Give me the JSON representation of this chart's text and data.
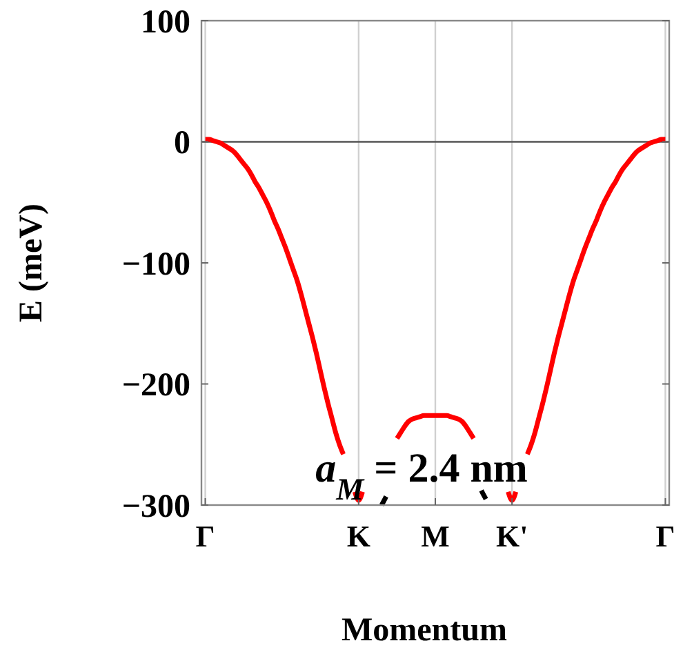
{
  "chart_data": {
    "type": "line",
    "xlabel": "Momentum",
    "ylabel": "E (meV)",
    "categories": [
      "Γ",
      null,
      null,
      null,
      null,
      null,
      null,
      null,
      null,
      null,
      null,
      null,
      null,
      null,
      null,
      null,
      null,
      null,
      null,
      null,
      null,
      null,
      null,
      null,
      null,
      null,
      null,
      null,
      null,
      null,
      null,
      null,
      null,
      null,
      null,
      null,
      null,
      null,
      null,
      null,
      "K",
      null,
      null,
      null,
      null,
      null,
      null,
      null,
      null,
      null,
      null,
      null,
      null,
      null,
      null,
      null,
      null,
      null,
      null,
      null,
      "M",
      null,
      null,
      null,
      null,
      null,
      null,
      null,
      null,
      null,
      null,
      null,
      null,
      null,
      null,
      null,
      null,
      null,
      null,
      null,
      "K'",
      null,
      null,
      null,
      null,
      null,
      null,
      null,
      null,
      null,
      null,
      null,
      null,
      null,
      null,
      null,
      null,
      null,
      null,
      null,
      null,
      null,
      null,
      null,
      null,
      null,
      null,
      null,
      null,
      null,
      null,
      null,
      null,
      null,
      null,
      null,
      null,
      null,
      null,
      null,
      "Γ"
    ],
    "ylim": [
      -300,
      100
    ],
    "yticks": [
      {
        "value": 100,
        "label": "100"
      },
      {
        "value": 0,
        "label": "0"
      },
      {
        "value": -100,
        "label": "−100"
      },
      {
        "value": -200,
        "label": "−200"
      },
      {
        "value": -300,
        "label": "−300"
      }
    ],
    "grid": "x",
    "ref_lines": [
      {
        "axis": "y",
        "value": 0,
        "color": "#555555"
      }
    ],
    "series": [
      {
        "color": "#ff0000",
        "values": [
          2,
          2,
          1,
          0,
          -1,
          -3,
          -5,
          -7,
          -10,
          -14,
          -18,
          -22,
          -27,
          -33,
          -38,
          -44,
          -50,
          -57,
          -65,
          -72,
          -80,
          -88,
          -97,
          -106,
          -115,
          -126,
          -138,
          -150,
          -162,
          -175,
          -189,
          -203,
          -216,
          -228,
          -240,
          -250,
          -258,
          null,
          null,
          -289,
          -296,
          -289,
          null,
          null,
          null,
          null,
          null,
          null,
          null,
          null,
          -245,
          -240,
          -235,
          -231,
          -229,
          -228,
          -227,
          -226,
          -226,
          -226,
          -226,
          -226,
          -226,
          -226,
          -227,
          -228,
          -229,
          -231,
          -235,
          -240,
          -245,
          null,
          null,
          null,
          null,
          null,
          null,
          null,
          null,
          -289,
          -296,
          -289,
          null,
          null,
          -258,
          -250,
          -240,
          -228,
          -216,
          -203,
          -189,
          -175,
          -162,
          -150,
          -138,
          -126,
          -115,
          -106,
          -97,
          -88,
          -80,
          -72,
          -65,
          -57,
          -50,
          -44,
          -38,
          -33,
          -27,
          -22,
          -18,
          -14,
          -10,
          -7,
          -5,
          -3,
          -1,
          0,
          1,
          2,
          2
        ]
      },
      {
        "color": "#000000",
        "line_style": "dashed",
        "values": [
          null,
          null,
          null,
          null,
          null,
          null,
          null,
          null,
          null,
          null,
          null,
          null,
          null,
          null,
          null,
          null,
          null,
          null,
          null,
          null,
          null,
          null,
          null,
          null,
          null,
          null,
          null,
          null,
          null,
          null,
          null,
          null,
          null,
          null,
          null,
          null,
          null,
          null,
          null,
          null,
          null,
          null,
          null,
          null,
          null,
          null,
          -300,
          -294,
          -288,
          null,
          null,
          null,
          null,
          null,
          null,
          null,
          null,
          null,
          null,
          null,
          null,
          null,
          null,
          null,
          null,
          null,
          null,
          null,
          null,
          null,
          null,
          null,
          -288,
          -294,
          -300,
          null,
          null,
          null,
          null,
          null,
          null,
          null,
          null,
          null,
          null,
          null,
          null,
          null,
          null,
          null,
          null,
          null,
          null,
          null,
          null,
          null,
          null,
          null,
          null,
          null,
          null,
          null,
          null,
          null,
          null,
          null,
          null,
          null,
          null,
          null,
          null,
          null,
          null,
          null,
          null,
          null,
          null,
          null,
          null,
          null,
          null
        ]
      }
    ],
    "annotations": [
      "a$_{M}$ = 2.4 nm"
    ]
  }
}
